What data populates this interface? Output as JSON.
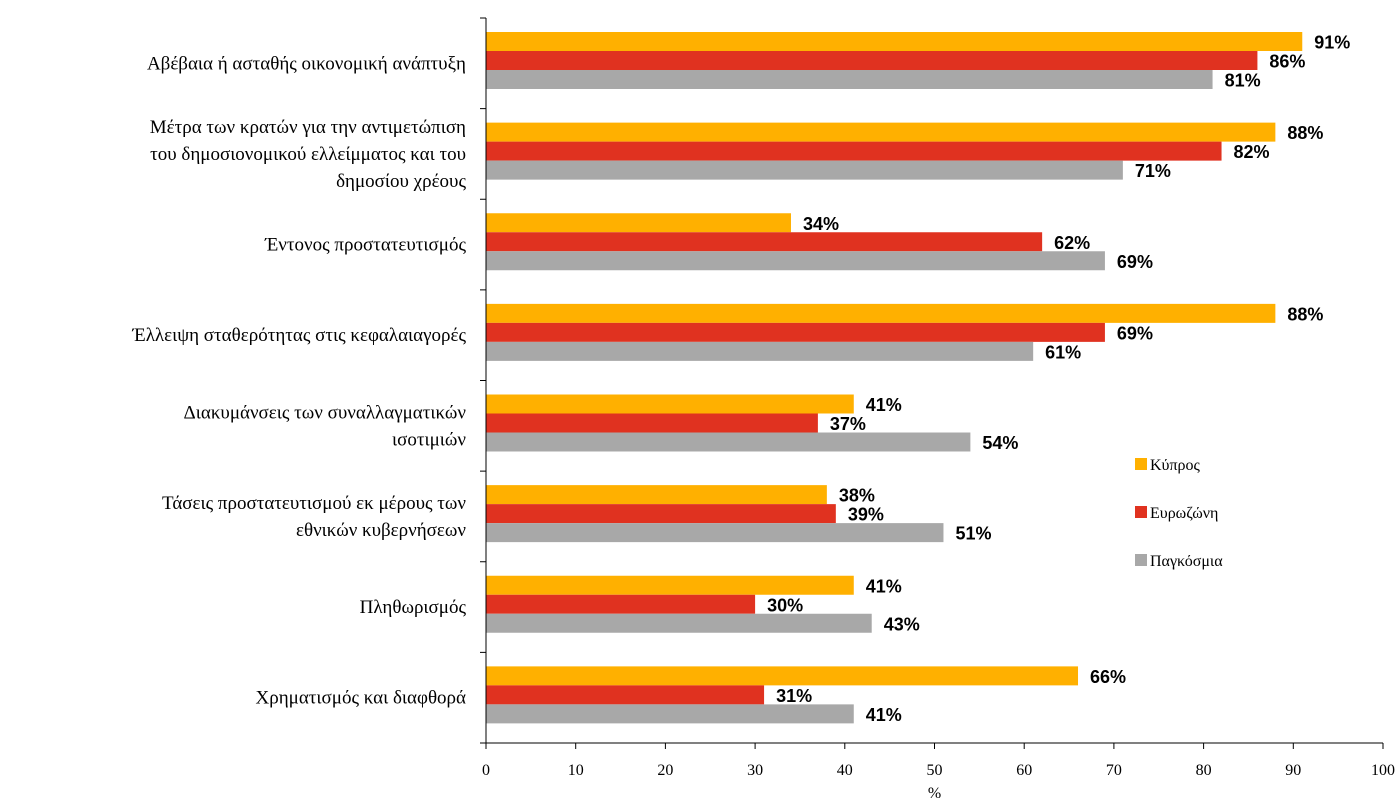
{
  "chart_data": {
    "type": "bar",
    "orientation": "horizontal",
    "categories": [
      [
        "Αβέβαια ή ασταθής οικονομική ανάπτυξη"
      ],
      [
        "Μέτρα των κρατών για την  αντιμετώπιση",
        "του δημοσιονομικού ελλείμματος και του",
        "δημοσίου χρέους"
      ],
      [
        "Έντονος προστατευτισμός"
      ],
      [
        "Έλλειψη σταθερότητας στις κεφαλαιαγορές"
      ],
      [
        "Διακυμάνσεις των συναλλαγματικών",
        "ισοτιμιών"
      ],
      [
        "Τάσεις προστατευτισμού εκ μέρους των",
        "εθνικών κυβερνήσεων"
      ],
      [
        "Πληθωρισμός"
      ],
      [
        "Χρηματισμός και διαφθορά"
      ]
    ],
    "series": [
      {
        "name": "Κύπρος",
        "color": "#FFB000",
        "values": [
          91,
          88,
          34,
          88,
          41,
          38,
          41,
          66
        ],
        "labels": [
          "91%",
          "88%",
          "34%",
          "88%",
          "41%",
          "38%",
          "41%",
          "66%"
        ]
      },
      {
        "name": "Ευρωζώνη",
        "color": "#E03220",
        "values": [
          86,
          82,
          62,
          69,
          37,
          39,
          30,
          31
        ],
        "labels": [
          "86%",
          "82%",
          "62%",
          "69%",
          "37%",
          "39%",
          "30%",
          "31%"
        ]
      },
      {
        "name": "Παγκόσμια",
        "color": "#A8A8A8",
        "values": [
          81,
          71,
          69,
          61,
          54,
          51,
          43,
          41
        ],
        "labels": [
          "81%",
          "71%",
          "69%",
          "61%",
          "54%",
          "51%",
          "43%",
          "41%"
        ]
      }
    ],
    "xlabel": "%",
    "xlim": [
      0,
      100
    ],
    "xticks": [
      "0",
      "10",
      "20",
      "30",
      "40",
      "50",
      "60",
      "70",
      "80",
      "90",
      "100"
    ],
    "grid": false,
    "legend_position": "right"
  }
}
